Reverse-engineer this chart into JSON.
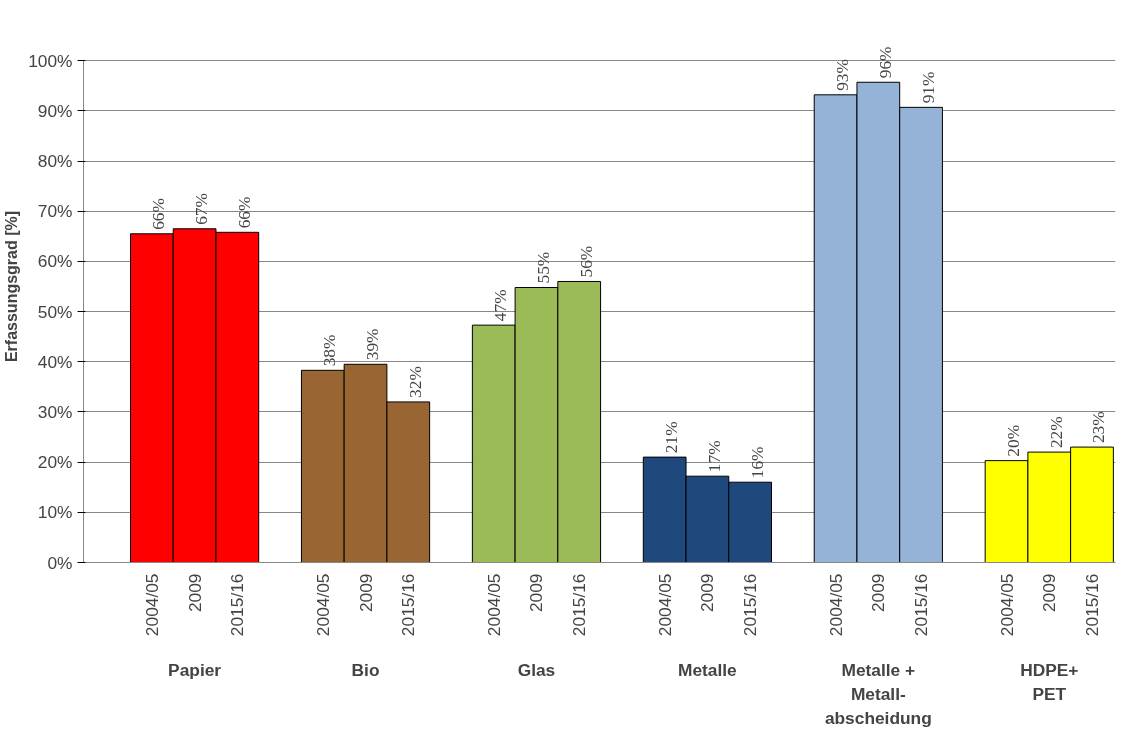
{
  "chart_data": {
    "type": "bar",
    "ylabel": "Erfassungsgrad [%]",
    "categories": [
      "2004/05",
      "2009",
      "2015/16",
      "2004/05",
      "2009",
      "2015/16",
      "2004/05",
      "2009",
      "2015/16",
      "2004/05",
      "2009",
      "2015/16",
      "2004/05",
      "2009",
      "2015/16",
      "2004/05",
      "2009",
      "2015/16"
    ],
    "values": [
      65.5,
      66.5,
      65.8,
      38.3,
      39.5,
      32,
      47.3,
      54.8,
      56,
      21,
      17.2,
      16,
      93.2,
      95.7,
      90.7,
      20.3,
      22,
      23
    ],
    "value_labels": [
      "66%",
      "67%",
      "66%",
      "38%",
      "39%",
      "32%",
      "47%",
      "55%",
      "56%",
      "21%",
      "17%",
      "16%",
      "93%",
      "96%",
      "91%",
      "20%",
      "22%",
      "23%"
    ],
    "colors": [
      "#ff0000",
      "#ff0000",
      "#ff0000",
      "#996633",
      "#996633",
      "#996633",
      "#9bbb59",
      "#9bbb59",
      "#9bbb59",
      "#1f497d",
      "#1f497d",
      "#1f497d",
      "#95b3d7",
      "#95b3d7",
      "#95b3d7",
      "#ffff00",
      "#ffff00",
      "#ffff00"
    ],
    "ylim": [
      0,
      100
    ],
    "yticks": [
      {
        "value": 0,
        "label": "0%"
      },
      {
        "value": 10,
        "label": "10%"
      },
      {
        "value": 20,
        "label": "20%"
      },
      {
        "value": 30,
        "label": "30%"
      },
      {
        "value": 40,
        "label": "40%"
      },
      {
        "value": 50,
        "label": "50%"
      },
      {
        "value": 60,
        "label": "60%"
      },
      {
        "value": 70,
        "label": "70%"
      },
      {
        "value": 80,
        "label": "80%"
      },
      {
        "value": 90,
        "label": "90%"
      },
      {
        "value": 100,
        "label": "100%"
      }
    ],
    "grid": "y",
    "annotations": [
      "Papier",
      "Bio",
      "Glas",
      "Metalle",
      "Metalle +\nMetall-\nabscheidung",
      "HDPE+\nPET"
    ]
  }
}
